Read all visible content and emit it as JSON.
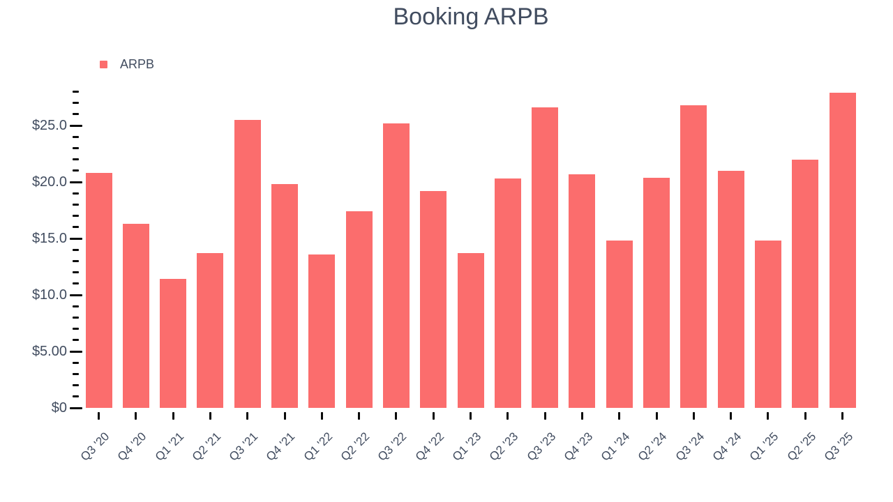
{
  "title": "Booking ARPB",
  "legend": {
    "label": "ARPB"
  },
  "colors": {
    "bar": "#fb6d6d",
    "text": "#414c5f",
    "tick": "#0a0a0a",
    "background": "#ffffff"
  },
  "y_axis": {
    "minor_step": 1,
    "max_tick_value": 28,
    "major_ticks": [
      {
        "value": 0,
        "label": "$0"
      },
      {
        "value": 5,
        "label": "$5.00"
      },
      {
        "value": 10,
        "label": "$10.0"
      },
      {
        "value": 15,
        "label": "$15.0"
      },
      {
        "value": 20,
        "label": "$20.0"
      },
      {
        "value": 25,
        "label": "$25.0"
      }
    ]
  },
  "chart_data": {
    "type": "bar",
    "title": "Booking ARPB",
    "xlabel": "",
    "ylabel": "",
    "ylim": [
      0,
      28
    ],
    "grid": false,
    "legend_position": "top-left",
    "categories": [
      "Q3 '20",
      "Q4 '20",
      "Q1 '21",
      "Q2 '21",
      "Q3 '21",
      "Q4 '21",
      "Q1 '22",
      "Q2 '22",
      "Q3 '22",
      "Q4 '22",
      "Q1 '23",
      "Q2 '23",
      "Q3 '23",
      "Q4 '23",
      "Q1 '24",
      "Q2 '24",
      "Q3 '24",
      "Q4 '24",
      "Q1 '25",
      "Q2 '25",
      "Q3 '25"
    ],
    "series": [
      {
        "name": "ARPB",
        "values": [
          20.8,
          16.3,
          11.4,
          13.7,
          25.5,
          19.8,
          13.6,
          17.4,
          25.2,
          19.2,
          13.7,
          20.3,
          26.6,
          20.7,
          14.8,
          20.4,
          26.8,
          21.0,
          14.8,
          22.0,
          27.9
        ]
      }
    ]
  }
}
